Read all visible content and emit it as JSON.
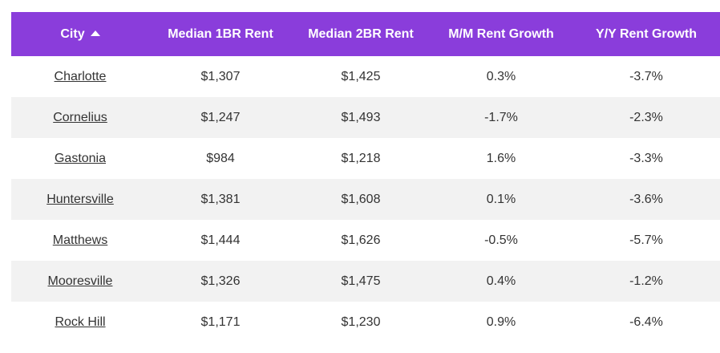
{
  "table": {
    "headers": {
      "city": "City",
      "median_1br": "Median 1BR Rent",
      "median_2br": "Median 2BR Rent",
      "mm_growth": "M/M Rent Growth",
      "yy_growth": "Y/Y Rent Growth"
    },
    "sort_icon": "caret-up-icon",
    "header_color": "#8a3ddb",
    "rows": [
      {
        "city": "Charlotte",
        "br1": "$1,307",
        "br2": "$1,425",
        "mm": "0.3%",
        "yy": "-3.7%"
      },
      {
        "city": "Cornelius",
        "br1": "$1,247",
        "br2": "$1,493",
        "mm": "-1.7%",
        "yy": "-2.3%"
      },
      {
        "city": "Gastonia",
        "br1": "$984",
        "br2": "$1,218",
        "mm": "1.6%",
        "yy": "-3.3%"
      },
      {
        "city": "Huntersville",
        "br1": "$1,381",
        "br2": "$1,608",
        "mm": "0.1%",
        "yy": "-3.6%"
      },
      {
        "city": "Matthews",
        "br1": "$1,444",
        "br2": "$1,626",
        "mm": "-0.5%",
        "yy": "-5.7%"
      },
      {
        "city": "Mooresville",
        "br1": "$1,326",
        "br2": "$1,475",
        "mm": "0.4%",
        "yy": "-1.2%"
      },
      {
        "city": "Rock Hill",
        "br1": "$1,171",
        "br2": "$1,230",
        "mm": "0.9%",
        "yy": "-6.4%"
      }
    ]
  }
}
